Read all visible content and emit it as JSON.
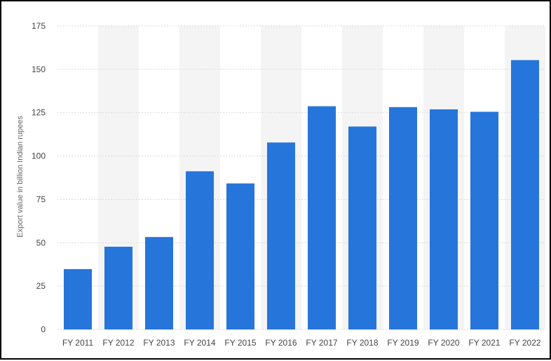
{
  "chart_data": {
    "type": "bar",
    "title": "",
    "xlabel": "",
    "ylabel": "Export value in billion Indian rupees",
    "categories": [
      "FY 2011",
      "FY 2012",
      "FY 2013",
      "FY 2014",
      "FY 2015",
      "FY 2016",
      "FY 2017",
      "FY 2018",
      "FY 2019",
      "FY 2020",
      "FY 2021",
      "FY 2022"
    ],
    "values": [
      34.8,
      47.7,
      53.3,
      91.2,
      84.2,
      107.8,
      128.7,
      117.0,
      128.2,
      126.9,
      125.5,
      155.3
    ],
    "ylim": [
      0,
      175
    ],
    "yticks": [
      0,
      25,
      50,
      75,
      100,
      125,
      150,
      175
    ],
    "grid": true,
    "legend": "none",
    "colors": {
      "bar": "#2675DB",
      "band": "#F4F4F4",
      "grid": "#D9D9D9",
      "frame": "#000000"
    }
  }
}
